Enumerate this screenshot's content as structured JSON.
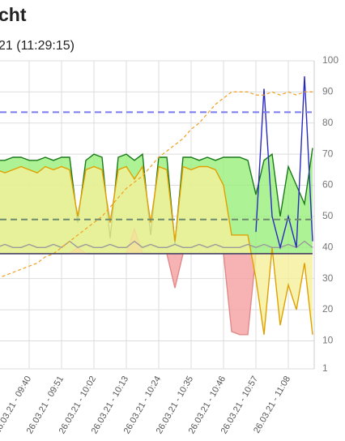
{
  "chart_data": {
    "type": "line",
    "title": "cht",
    "subtitle": "21 (11:29:15)",
    "categories": [
      null,
      null,
      null,
      null,
      "26.03.21 - 09:40",
      null,
      null,
      null,
      "26.03.21 - 09:51",
      null,
      null,
      null,
      "26.03.21 - 10:02",
      null,
      null,
      null,
      "26.03.21 - 10:13",
      null,
      null,
      null,
      "26.03.21 - 10:24",
      null,
      null,
      null,
      "26.03.21 - 10:35",
      null,
      null,
      null,
      "26.03.21 - 10:46",
      null,
      null,
      null,
      "26.03.21 - 10:57",
      null,
      null,
      null,
      "26.03.21 - 11:08",
      null,
      null,
      null
    ],
    "ylim": [
      1,
      100
    ],
    "yticks": [
      1,
      10,
      20,
      30,
      40,
      50,
      60,
      70,
      80,
      90,
      100
    ],
    "grid": true,
    "reference_lines": [
      {
        "value": 83.5,
        "color": "#7b7bef",
        "dash": true
      },
      {
        "value": 49,
        "color": "#6f8a6f",
        "dash": true
      }
    ],
    "series": [
      {
        "color": "#1a7a1a",
        "fill": "#98f07a",
        "fill_to": 38,
        "values": [
          68,
          68,
          69,
          69,
          68,
          68,
          69,
          68,
          69,
          69,
          48,
          68,
          70,
          69,
          43,
          69,
          70,
          68,
          70,
          44,
          69,
          69,
          41,
          69,
          69,
          68,
          69,
          68,
          69,
          69,
          69,
          68,
          57,
          68,
          70,
          50,
          66,
          60,
          54,
          72
        ]
      },
      {
        "color": "#e08a8a",
        "fill": "#f5a0a0",
        "fill_to": 38,
        "values": [
          38,
          38,
          38,
          38,
          38,
          38,
          38,
          38,
          38,
          38,
          40,
          38,
          38,
          38,
          38,
          38,
          38,
          46,
          38,
          38,
          38,
          38,
          27,
          38,
          38,
          38,
          38,
          38,
          38,
          13,
          12,
          12,
          38,
          38,
          38,
          38,
          38,
          38,
          38,
          38
        ]
      },
      {
        "color": "#e0a000",
        "fill": "#f5f09a",
        "fill_to": 38,
        "values": [
          65,
          64,
          65,
          66,
          65,
          64,
          66,
          65,
          66,
          65,
          50,
          65,
          66,
          65,
          48,
          65,
          66,
          62,
          66,
          48,
          66,
          65,
          42,
          66,
          65,
          66,
          66,
          65,
          60,
          44,
          44,
          44,
          30,
          12,
          40,
          15,
          28,
          20,
          35,
          12
        ]
      },
      {
        "color": "#9a9a9a",
        "values": [
          40,
          41,
          40,
          40,
          41,
          40,
          40,
          41,
          40,
          42,
          40,
          41,
          40,
          40,
          41,
          40,
          40,
          42,
          40,
          41,
          40,
          40,
          41,
          40,
          40,
          41,
          40,
          41,
          40,
          40,
          40,
          41,
          40,
          41,
          40,
          40,
          41,
          40,
          42,
          40
        ]
      },
      {
        "color": "#2a2ac0",
        "values": [
          null,
          null,
          null,
          null,
          null,
          null,
          null,
          null,
          null,
          null,
          null,
          null,
          null,
          null,
          null,
          null,
          null,
          null,
          null,
          null,
          null,
          null,
          null,
          null,
          null,
          null,
          null,
          null,
          null,
          null,
          null,
          null,
          45,
          91,
          50,
          40,
          50,
          40,
          95,
          42
        ]
      },
      {
        "color": "#f0a020",
        "dash": true,
        "values": [
          30,
          31,
          32,
          33,
          34,
          35,
          37,
          38,
          40,
          42,
          44,
          46,
          48,
          50,
          53,
          56,
          59,
          61,
          63,
          66,
          69,
          71,
          73,
          75,
          78,
          80,
          83,
          86,
          88,
          90,
          90,
          90,
          89,
          89,
          90,
          89,
          90,
          89,
          90,
          90
        ]
      },
      {
        "color": "#2a2a5a",
        "values": [
          38,
          38,
          38,
          38,
          38,
          38,
          38,
          38,
          38,
          38,
          38,
          38,
          38,
          38,
          38,
          38,
          38,
          38,
          38,
          38,
          38,
          38,
          38,
          38,
          38,
          38,
          38,
          38,
          38,
          38,
          38,
          38,
          38,
          38,
          38,
          38,
          38,
          38,
          38,
          38
        ]
      }
    ]
  }
}
